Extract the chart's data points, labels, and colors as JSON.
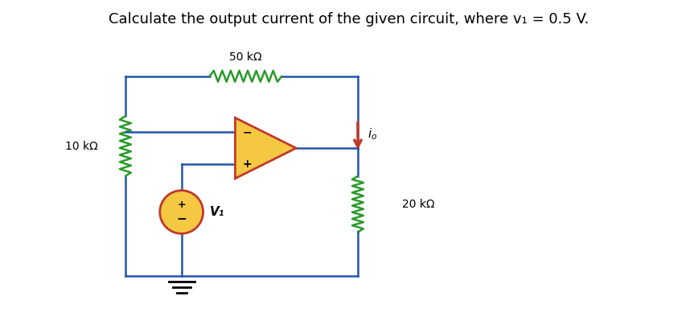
{
  "title": "Calculate the output current of the given circuit, where v₁ = 0.5 V.",
  "title_fontsize": 13,
  "bg_color": "#ffffff",
  "wire_color": "#2255aa",
  "resistor_color": "#2a9a2a",
  "opamp_fill": "#f5c842",
  "opamp_outline": "#c0392b",
  "source_fill": "#f5c842",
  "source_outline": "#c0392b",
  "arrow_color": "#c0392b",
  "label_10k": "10 kΩ",
  "label_20k": "20 kΩ",
  "label_50k": "50 kΩ",
  "label_v1": "V₁",
  "label_io": "iₒ"
}
